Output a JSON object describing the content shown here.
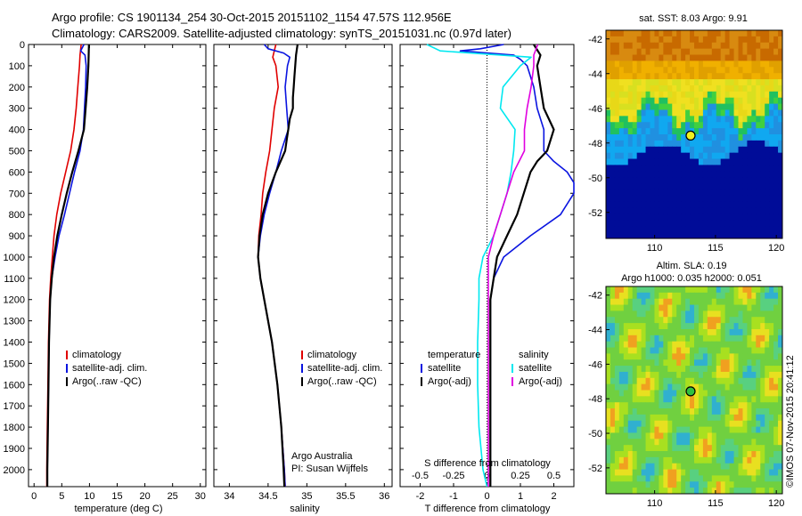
{
  "header": {
    "line1": "Argo profile: CS 1901134_254 30-Oct-2015 20151102_1154 47.57S 112.956E",
    "line2": "Climatology: CARS2009. Satellite-adjusted climatology: synTS_20151031.nc (0.97d later)"
  },
  "colors": {
    "climatology": "#e00000",
    "satellite": "#0a14e0",
    "argo": "#000000",
    "cyan": "#00e8f0",
    "magenta": "#e000e0"
  },
  "chart_data": [
    {
      "type": "line",
      "name": "temperature",
      "xlabel": "temperature (deg C)",
      "ylabel": "",
      "xlim": [
        -1,
        31
      ],
      "ylim": [
        2080,
        0
      ],
      "xticks": [
        "0",
        "5",
        "10",
        "15",
        "20",
        "25",
        "30"
      ],
      "yticks": [
        "0",
        "100",
        "200",
        "300",
        "400",
        "500",
        "600",
        "700",
        "800",
        "900",
        "1000",
        "1100",
        "1200",
        "1300",
        "1400",
        "1500",
        "1600",
        "1700",
        "1800",
        "1900",
        "2000"
      ],
      "legend": [
        "climatology",
        "satellite-adj. clim.",
        "Argo(..raw -QC)"
      ],
      "series": [
        {
          "name": "climatology",
          "color": "#e00000",
          "depth": [
            0,
            50,
            100,
            200,
            300,
            400,
            500,
            600,
            700,
            800,
            900,
            1000,
            1100,
            1200,
            1400,
            1600,
            1800,
            2000,
            2080
          ],
          "values": [
            8.5,
            8.3,
            8.2,
            7.9,
            7.6,
            7.2,
            6.6,
            5.7,
            4.8,
            4.1,
            3.6,
            3.3,
            3.0,
            2.8,
            2.6,
            2.5,
            2.4,
            2.3,
            2.3
          ]
        },
        {
          "name": "satellite-adj. clim.",
          "color": "#0a14e0",
          "depth": [
            0,
            30,
            50,
            100,
            200,
            300,
            400,
            500,
            600,
            700,
            800,
            900,
            1000,
            1100,
            1200,
            1400,
            1600,
            1800,
            2000,
            2080
          ],
          "values": [
            9.0,
            8.4,
            9.2,
            9.4,
            9.3,
            9.1,
            8.9,
            8.3,
            7.3,
            6.4,
            5.5,
            4.5,
            3.8,
            3.2,
            2.9,
            2.7,
            2.6,
            2.5,
            2.4,
            2.4
          ]
        },
        {
          "name": "Argo(..raw -QC)",
          "color": "#000000",
          "depth": [
            0,
            100,
            200,
            300,
            400,
            500,
            600,
            700,
            800,
            900,
            1000,
            1100,
            1200,
            1400,
            1600,
            1800,
            2000,
            2080
          ],
          "values": [
            9.9,
            9.8,
            9.6,
            9.3,
            9.0,
            8.0,
            6.9,
            5.9,
            5.0,
            4.2,
            3.6,
            3.2,
            2.9,
            2.7,
            2.6,
            2.5,
            2.4,
            2.4
          ]
        }
      ]
    },
    {
      "type": "line",
      "name": "salinity",
      "xlabel": "salinity",
      "ylabel": "",
      "xlim": [
        33.8,
        36.1
      ],
      "ylim": [
        2080,
        0
      ],
      "xticks": [
        "34",
        "34.5",
        "35",
        "35.5",
        "36"
      ],
      "legend": [
        "climatology",
        "satellite-adj. clim.",
        "Argo(..raw -QC)"
      ],
      "annotations": [
        "Argo Australia",
        "PI: Susan Wijffels"
      ],
      "series": [
        {
          "name": "climatology",
          "color": "#e00000",
          "depth": [
            0,
            30,
            60,
            100,
            200,
            300,
            400,
            500,
            600,
            700,
            800,
            900,
            1000,
            1100,
            1200,
            1400,
            1600,
            1800,
            2000,
            2080
          ],
          "values": [
            34.6,
            34.58,
            34.56,
            34.6,
            34.63,
            34.58,
            34.55,
            34.52,
            34.47,
            34.43,
            34.41,
            34.38,
            34.37,
            34.4,
            34.45,
            34.55,
            34.62,
            34.67,
            34.71,
            34.72
          ]
        },
        {
          "name": "satellite-adj. clim.",
          "color": "#0a14e0",
          "depth": [
            0,
            20,
            40,
            60,
            100,
            200,
            300,
            400,
            500,
            600,
            700,
            800,
            900,
            1000,
            1100,
            1200,
            1400,
            1600,
            1800,
            2000,
            2080
          ],
          "values": [
            34.45,
            34.5,
            34.7,
            34.78,
            34.75,
            34.72,
            34.74,
            34.76,
            34.67,
            34.6,
            34.52,
            34.45,
            34.4,
            34.37,
            34.4,
            34.45,
            34.55,
            34.62,
            34.67,
            34.71,
            34.72
          ]
        },
        {
          "name": "Argo(..raw -QC)",
          "color": "#000000",
          "depth": [
            0,
            50,
            100,
            150,
            200,
            250,
            300,
            350,
            400,
            450,
            500,
            600,
            700,
            800,
            900,
            1000,
            1100,
            1200,
            1400,
            1600,
            1800,
            2000,
            2080
          ],
          "values": [
            34.88,
            34.86,
            34.85,
            34.84,
            34.83,
            34.82,
            34.82,
            34.78,
            34.76,
            34.74,
            34.72,
            34.6,
            34.5,
            34.43,
            34.39,
            34.37,
            34.4,
            34.45,
            34.55,
            34.62,
            34.67,
            34.7,
            34.71
          ]
        }
      ]
    },
    {
      "type": "line",
      "name": "difference",
      "xlabel": "T difference from climatology",
      "xlabel_top": "S difference from climatology",
      "ylabel": "",
      "xlim": [
        -2.6,
        2.6
      ],
      "ylim": [
        2080,
        0
      ],
      "xticks": [
        "-2",
        "-1",
        "0",
        "1",
        "2"
      ],
      "xticks_S": [
        "-0.5",
        "-0.25",
        "0",
        "0.25",
        "0.5"
      ],
      "legend_temperature": {
        "title": "temperature",
        "items": [
          "satellite",
          "Argo(-adj)"
        ]
      },
      "legend_salinity": {
        "title": "salinity",
        "items": [
          "satellite",
          "Argo(-adj)"
        ]
      },
      "series": [
        {
          "name": "temperature satellite",
          "color": "#0a14e0",
          "depth": [
            0,
            20,
            30,
            50,
            70,
            100,
            200,
            300,
            400,
            500,
            550,
            600,
            650,
            700,
            800,
            900,
            1000,
            1100,
            1200,
            1400,
            1600,
            1800,
            2000,
            2080
          ],
          "values": [
            0.5,
            -0.2,
            -0.8,
            0.8,
            1.0,
            1.2,
            1.4,
            1.5,
            1.7,
            1.7,
            2.0,
            2.4,
            2.6,
            2.6,
            2.2,
            1.3,
            0.5,
            0.2,
            0.1,
            0.1,
            0.1,
            0.1,
            0.1,
            0.1
          ]
        },
        {
          "name": "temperature Argo(-adj)",
          "color": "#000000",
          "depth": [
            0,
            50,
            100,
            200,
            300,
            400,
            500,
            550,
            600,
            700,
            800,
            900,
            1000,
            1100,
            1200,
            1400,
            1600,
            1800,
            2000,
            2080
          ],
          "values": [
            1.4,
            1.6,
            1.5,
            1.6,
            1.7,
            2.0,
            1.8,
            1.5,
            1.3,
            1.1,
            0.9,
            0.6,
            0.3,
            0.2,
            0.1,
            0.1,
            0.1,
            0.1,
            0.1,
            0.1
          ]
        },
        {
          "name": "salinity satellite",
          "color": "#00e8f0",
          "depth": [
            0,
            30,
            60,
            100,
            200,
            300,
            400,
            500,
            600,
            700,
            800,
            900,
            1000,
            1100,
            1200,
            1400,
            1600,
            1800,
            2000,
            2080
          ],
          "values": [
            -0.45,
            -0.35,
            0.33,
            0.25,
            0.12,
            0.1,
            0.21,
            0.2,
            0.18,
            0.15,
            0.1,
            0.05,
            -0.03,
            -0.06,
            -0.06,
            -0.07,
            -0.07,
            -0.06,
            -0.03,
            0
          ]
        },
        {
          "name": "salinity Argo(-adj)",
          "color": "#e000e0",
          "depth": [
            0,
            50,
            100,
            200,
            300,
            400,
            500,
            600,
            700,
            800,
            900,
            1000,
            1100,
            1200,
            1400,
            1600,
            1800,
            2000,
            2080
          ],
          "values": [
            0.38,
            0.35,
            0.35,
            0.33,
            0.3,
            0.28,
            0.28,
            0.2,
            0.15,
            0.1,
            0.05,
            0.01,
            0.01,
            0.01,
            0.01,
            0.01,
            0.01,
            0.01,
            0.01
          ]
        }
      ]
    },
    {
      "type": "heatmap",
      "name": "sst-map",
      "title": "sat. SST: 8.03 Argo: 9.91",
      "xlim": [
        106,
        120.5
      ],
      "ylim": [
        -53.5,
        -41.5
      ],
      "xticks": [
        "110",
        "115",
        "120"
      ],
      "yticks": [
        "-42",
        "-44",
        "-46",
        "-48",
        "-50",
        "-52"
      ],
      "marker": {
        "lon": 112.956,
        "lat": -47.57
      }
    },
    {
      "type": "heatmap",
      "name": "sla-map",
      "title": "Altim. SLA: 0.19",
      "subtitle": "Argo h1000: 0.035 h2000: 0.051",
      "xlim": [
        106,
        120.5
      ],
      "ylim": [
        -53.5,
        -41.5
      ],
      "xticks": [
        "110",
        "115",
        "120"
      ],
      "yticks": [
        "-42",
        "-44",
        "-46",
        "-48",
        "-50",
        "-52"
      ],
      "marker": {
        "lon": 112.956,
        "lat": -47.57
      }
    }
  ],
  "credit": "©IMOS 07-Nov-2015 20:41:12"
}
